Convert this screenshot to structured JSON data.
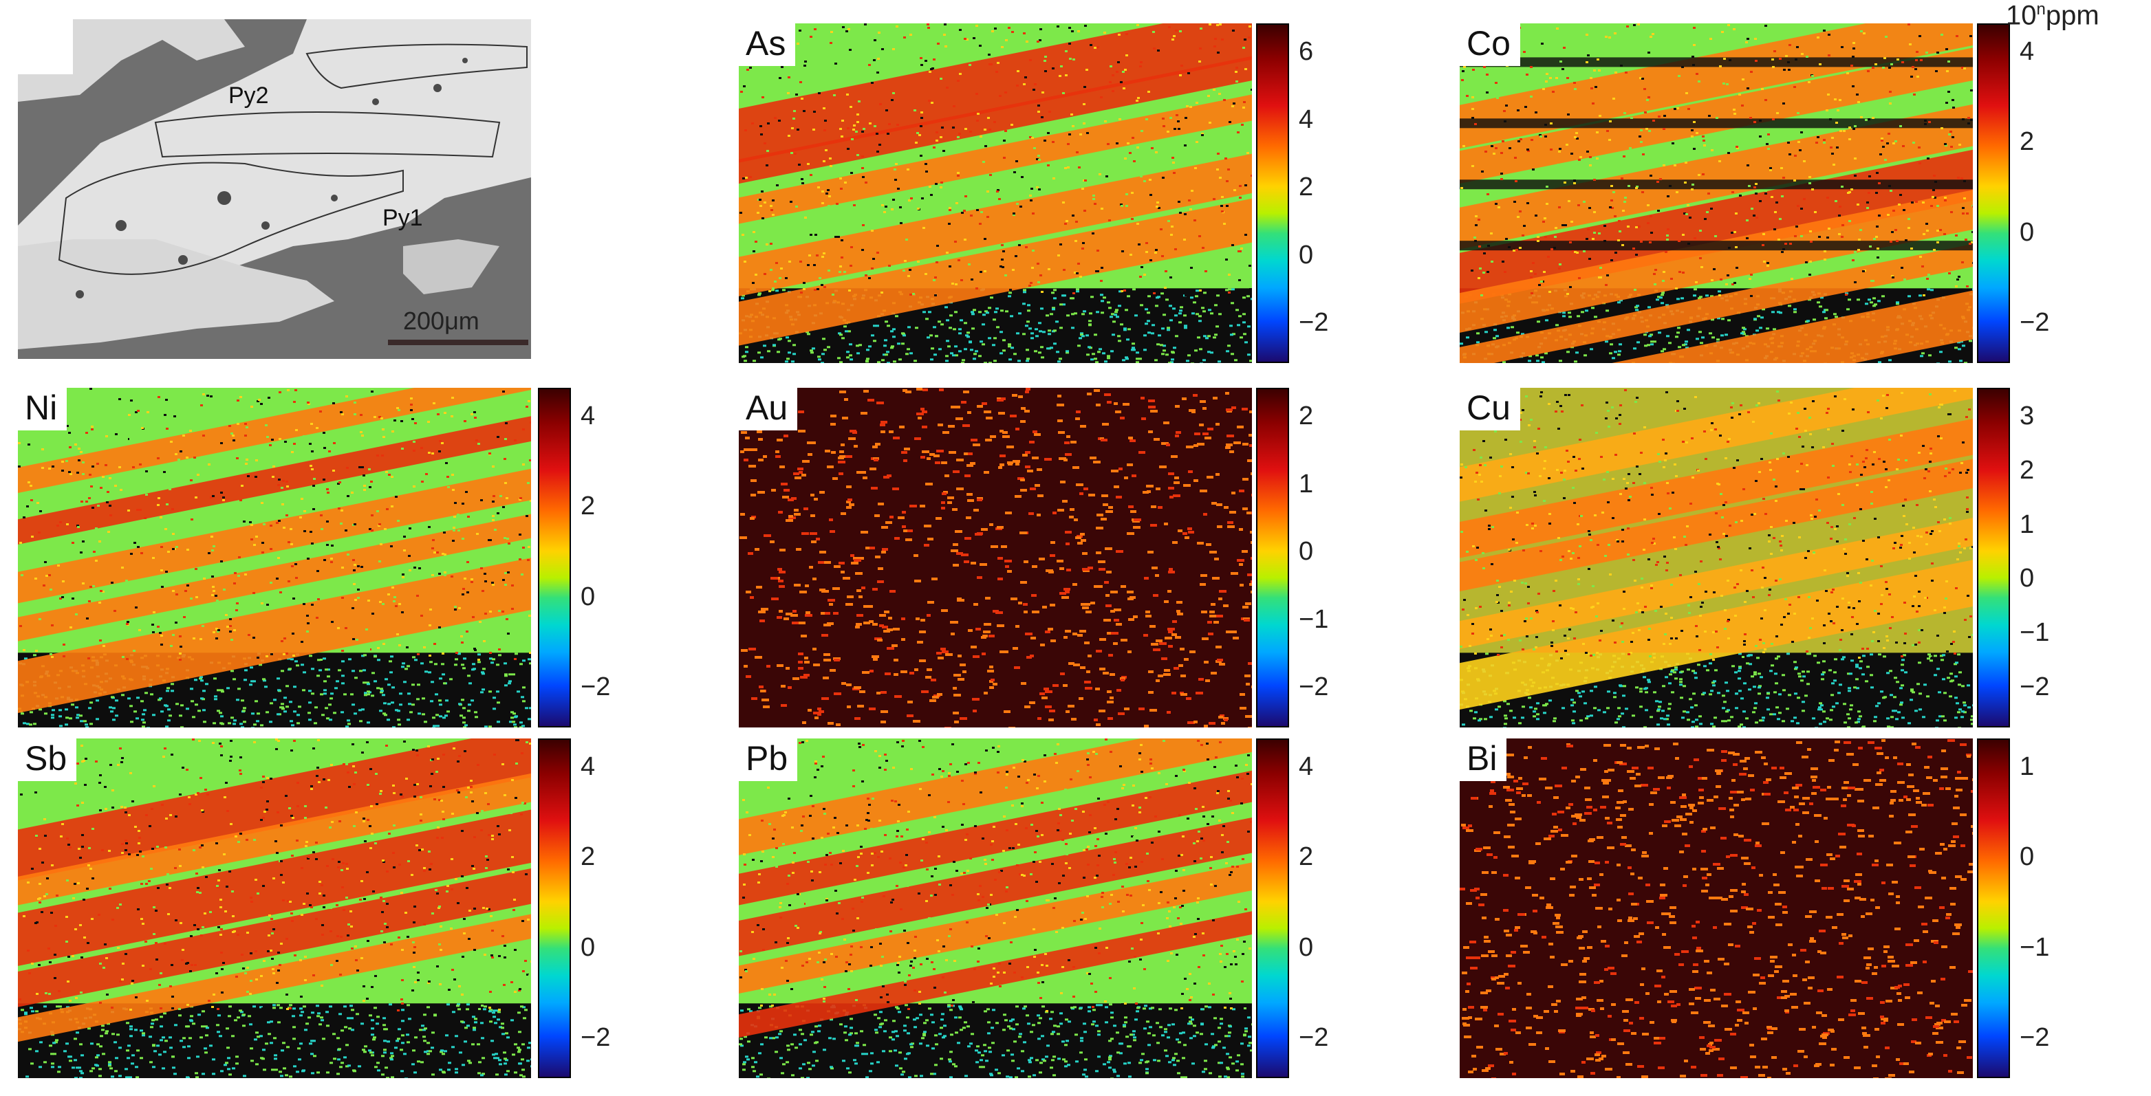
{
  "bse": {
    "labels": [
      "Py2",
      "Py1"
    ],
    "scale": "200μm"
  },
  "unit": {
    "base": "10",
    "exp": "n",
    "suffix": "ppm"
  },
  "panels": [
    {
      "element": "As",
      "ticks": [
        "6",
        "4",
        "2",
        "0",
        "−2"
      ],
      "style": "dense",
      "seed": 11
    },
    {
      "element": "Co",
      "ticks": [
        "4",
        "2",
        "0",
        "−2"
      ],
      "style": "banded",
      "seed": 23
    },
    {
      "element": "Ni",
      "ticks": [
        "4",
        "2",
        "0",
        "−2"
      ],
      "style": "dense",
      "seed": 37
    },
    {
      "element": "Au",
      "ticks": [
        "2",
        "1",
        "0",
        "−1",
        "−2"
      ],
      "style": "sparse",
      "seed": 41
    },
    {
      "element": "Cu",
      "ticks": [
        "3",
        "2",
        "1",
        "0",
        "−1",
        "−2"
      ],
      "style": "warm",
      "seed": 53
    },
    {
      "element": "Sb",
      "ticks": [
        "4",
        "2",
        "0",
        "−2"
      ],
      "style": "dense",
      "seed": 67
    },
    {
      "element": "Pb",
      "ticks": [
        "4",
        "2",
        "0",
        "−2"
      ],
      "style": "dense",
      "seed": 71
    },
    {
      "element": "Bi",
      "ticks": [
        "1",
        "0",
        "−1",
        "−2"
      ],
      "style": "sparse",
      "seed": 83
    }
  ],
  "palette": {
    "dark": "#3a0606",
    "red": "#e8320c",
    "orange": "#ff7a10",
    "yellow": "#ffd21a",
    "green": "#7de84a",
    "cyan": "#27d3c8",
    "black": "#0d0d0d"
  }
}
